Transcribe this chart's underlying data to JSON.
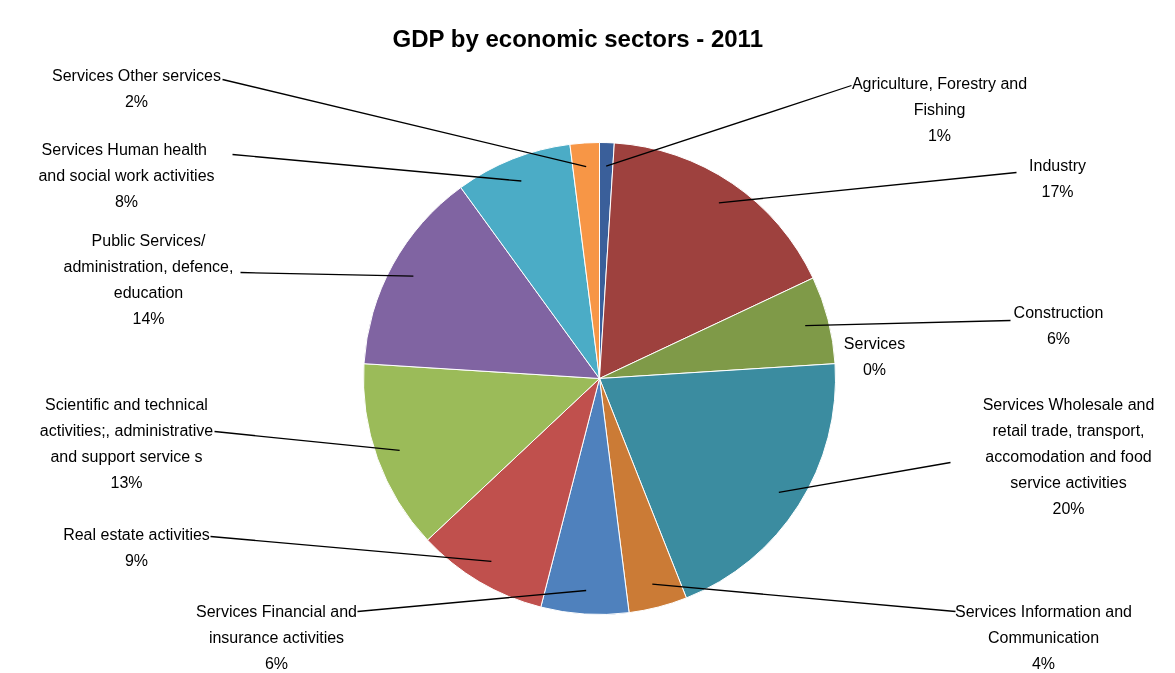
{
  "chart_data": {
    "type": "pie",
    "title": "GDP by economic sectors - 2011",
    "categories": [
      "Agriculture, Forestry and\nFishing",
      "Industry",
      "Construction",
      "Services",
      "Services Wholesale and\nretail trade, transport,\naccomodation and food\nservice activities",
      "Services Information and\nCommunication",
      "Services Financial and\ninsurance activities",
      "Real estate activities",
      "Scientific and technical\nactivities;, administrative\nand support service s",
      "Public Services/\nadministration, defence,\neducation",
      "Services  Human health\nand social work activities",
      "Services Other services"
    ],
    "values": [
      1,
      17,
      6,
      0,
      20,
      4,
      6,
      9,
      13,
      14,
      8,
      2
    ],
    "colors": [
      "#3a5f9a",
      "#9e413e",
      "#7f9a48",
      "#6b8cba",
      "#3b8ca0",
      "#cb7b36",
      "#4f81bd",
      "#c0504d",
      "#9bbb59",
      "#8064a2",
      "#4bacc6",
      "#f79646"
    ],
    "data_labels": true,
    "value_labels": [
      "1%",
      "17%",
      "6%",
      "0%",
      "20%",
      "4%",
      "6%",
      "9%",
      "13%",
      "14%",
      "8%",
      "2%"
    ]
  }
}
